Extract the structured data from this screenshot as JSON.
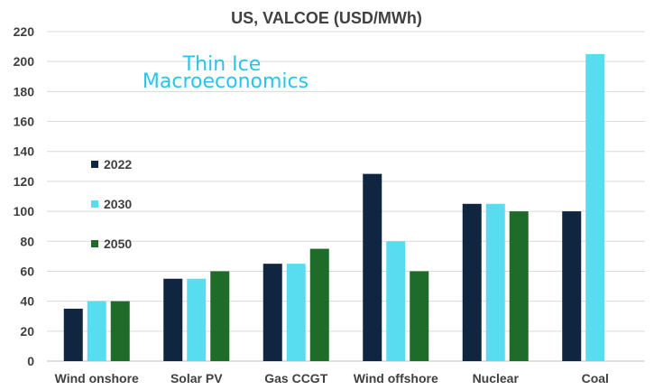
{
  "chart_data": {
    "type": "bar",
    "title": "US, VALCOE (USD/MWh)",
    "categories": [
      "Wind onshore",
      "Solar PV",
      "Gas CCGT",
      "Wind offshore",
      "Nuclear",
      "Coal"
    ],
    "series": [
      {
        "name": "2022",
        "color": "#0f2540",
        "values": [
          35,
          55,
          65,
          125,
          105,
          100
        ]
      },
      {
        "name": "2030",
        "color": "#58dcef",
        "values": [
          40,
          55,
          65,
          80,
          105,
          205
        ]
      },
      {
        "name": "2050",
        "color": "#1e6b2a",
        "values": [
          40,
          60,
          75,
          60,
          100,
          null
        ]
      }
    ],
    "ylim": [
      0,
      220
    ],
    "yticks": [
      0,
      20,
      40,
      60,
      80,
      100,
      120,
      140,
      160,
      180,
      200,
      220
    ],
    "grid": true,
    "legend_position": "left, inside plot"
  },
  "logo": {
    "line1": "Thin Ice",
    "line2": "Macroeconomics"
  }
}
